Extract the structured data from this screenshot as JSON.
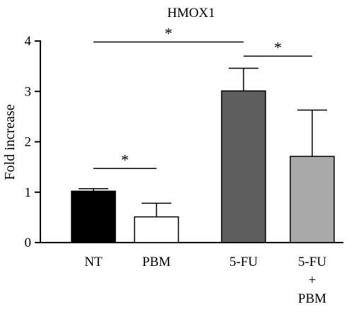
{
  "chart_data": {
    "type": "bar",
    "title": "HMOX1",
    "xlabel": "",
    "ylabel": "Fold increase",
    "ylim": [
      0,
      4
    ],
    "yticks": [
      0,
      1,
      2,
      3,
      4
    ],
    "categories": [
      {
        "lines": [
          "NT"
        ]
      },
      {
        "lines": [
          "PBM"
        ]
      },
      {
        "lines": [
          "5-FU"
        ]
      },
      {
        "lines": [
          "5-FU",
          "+",
          "PBM"
        ]
      }
    ],
    "values": [
      1.02,
      0.51,
      3.01,
      1.71
    ],
    "errors": [
      0.05,
      0.27,
      0.45,
      0.92
    ],
    "colors": [
      "#000000",
      "#ffffff",
      "#5e5e5e",
      "#a9a9a9"
    ],
    "edge_color": "#000000",
    "significance": [
      {
        "from": 0,
        "to": 2,
        "level": 3.98,
        "label": "*"
      },
      {
        "from": 2,
        "to": 3,
        "level": 3.7,
        "label": "*"
      },
      {
        "from": 0,
        "to": 1,
        "level": 1.47,
        "label": "*"
      }
    ]
  }
}
